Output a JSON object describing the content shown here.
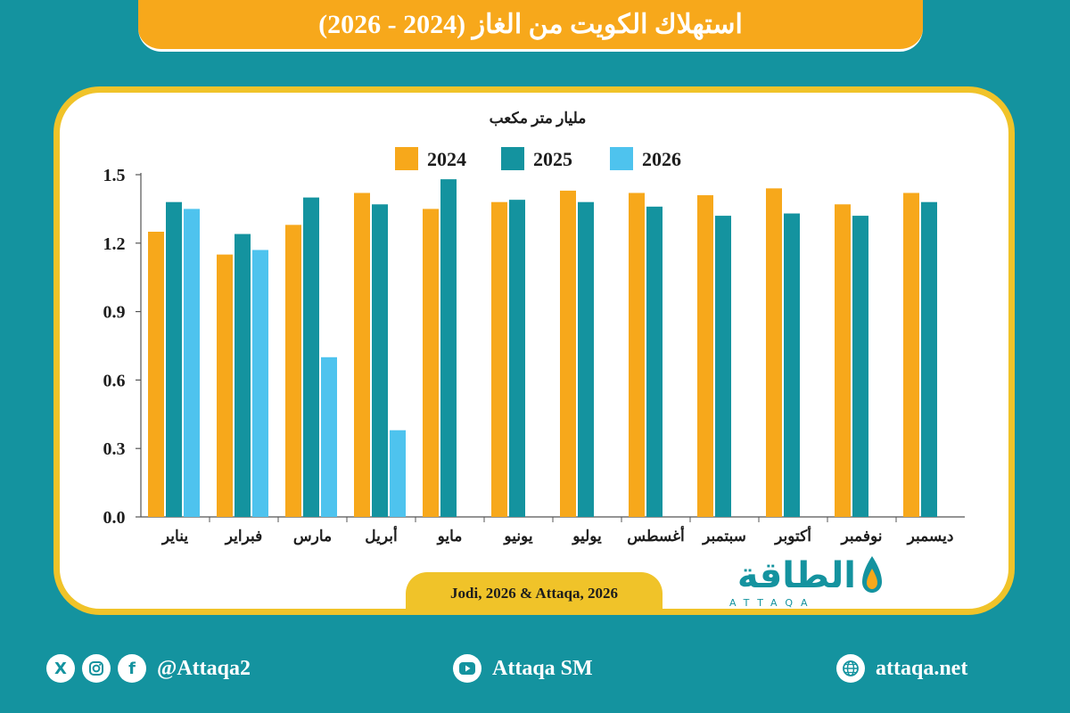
{
  "title": "استهلاك الكويت من الغاز (2024 - 2026)",
  "source": "Jodi, 2026 & Attaqa, 2026",
  "brand": {
    "arabic": "الطاقة",
    "english": "ATTAQA"
  },
  "footer": {
    "social_handle": "@Attaqa2",
    "youtube": "Attaqa SM",
    "website": "attaqa.net"
  },
  "icons": [
    "x-icon",
    "instagram-icon",
    "facebook-icon",
    "youtube-icon",
    "globe-icon"
  ],
  "colors": {
    "background": "#14939f",
    "banner": "#f7a81b",
    "frame": "#f0c329",
    "series_2024": "#f7a81b",
    "series_2025": "#14939f",
    "series_2026": "#4ec3ee"
  },
  "chart_data": {
    "type": "bar",
    "ylabel": "مليار متر مكعب",
    "ylim": [
      0,
      1.5
    ],
    "yticks": [
      "0.0",
      "0.3",
      "0.6",
      "0.9",
      "1.2",
      "1.5"
    ],
    "legend_position": "top",
    "categories": [
      "يناير",
      "فبراير",
      "مارس",
      "أبريل",
      "مايو",
      "يونيو",
      "يوليو",
      "أغسطس",
      "سبتمبر",
      "أكتوبر",
      "نوفمبر",
      "ديسمبر"
    ],
    "series": [
      {
        "name": "2024",
        "values": [
          1.25,
          1.15,
          1.28,
          1.42,
          1.35,
          1.38,
          1.43,
          1.42,
          1.41,
          1.44,
          1.37,
          1.42
        ]
      },
      {
        "name": "2025",
        "values": [
          1.38,
          1.24,
          1.4,
          1.37,
          1.48,
          1.39,
          1.38,
          1.36,
          1.32,
          1.33,
          1.32,
          1.38
        ]
      },
      {
        "name": "2026",
        "values": [
          1.35,
          1.17,
          0.7,
          0.38,
          null,
          null,
          null,
          null,
          null,
          null,
          null,
          null
        ]
      }
    ]
  }
}
